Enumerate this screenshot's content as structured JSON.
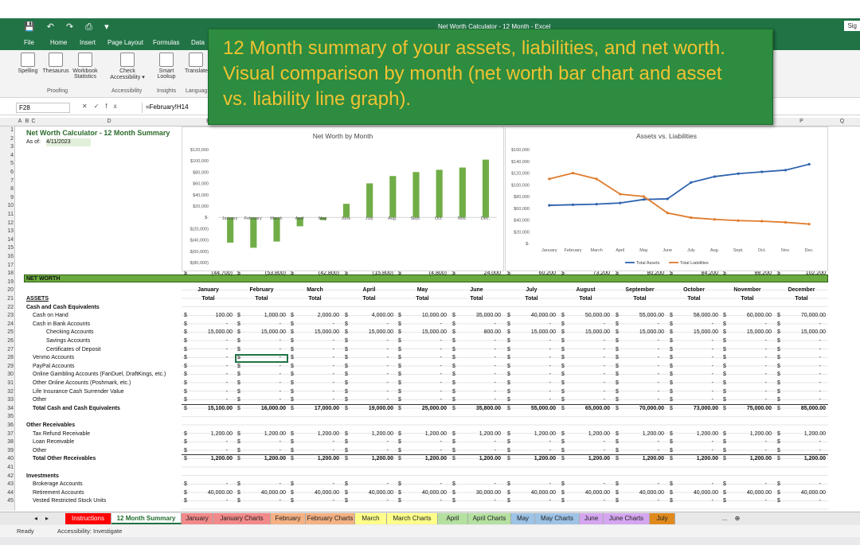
{
  "titlebar": {
    "quick_access": "💾 ↶ ↷ ⎙ ▾",
    "title": "Net Worth Calculator - 12 Month  -  Excel",
    "sign_in": "Sig"
  },
  "menu": [
    "File",
    "Home",
    "Insert",
    "Page Layout",
    "Formulas",
    "Data"
  ],
  "ribbon": {
    "buttons": [
      "Spelling",
      "Thesaurus",
      "Workbook Statistics",
      "Check Accessibility ▾",
      "Smart Lookup",
      "Translate"
    ],
    "groups": [
      "Proofing",
      "Accessibility",
      "Insights",
      "Languag"
    ]
  },
  "formula_bar": {
    "name_box": "F28",
    "formula": "=February!H14"
  },
  "banner": {
    "line1": "12 Month summary of your assets, liabilities, and net worth.",
    "line2": "Visual comparison by month (net worth bar chart and asset",
    "line3": "vs. liability line graph)."
  },
  "columns": [
    "A",
    "B",
    "C",
    "D",
    "E",
    "F",
    "G",
    "H",
    "I",
    "J",
    "K",
    "L",
    "M",
    "N",
    "O",
    "P",
    "Q"
  ],
  "rows": [
    "1",
    "2",
    "3",
    "4",
    "5",
    "6",
    "7",
    "8",
    "9",
    "10",
    "11",
    "12",
    "13",
    "14",
    "15",
    "16",
    "17",
    "18",
    "19",
    "20",
    "21",
    "22",
    "23",
    "24",
    "25",
    "26",
    "27",
    "28",
    "29",
    "30",
    "31",
    "32",
    "33",
    "34",
    "35",
    "36",
    "37",
    "38",
    "39",
    "40",
    "41",
    "42",
    "43",
    "44",
    "45"
  ],
  "sheet": {
    "title": "Net Worth Calculator - 12 Month Summary",
    "as_of_label": "As of:",
    "as_of_date": "4/11/2023",
    "net_worth_label": "NET WORTH",
    "net_worth_values": [
      "(44,700)",
      "(53,800)",
      "(42,800)",
      "(15,800)",
      "(4,800)",
      "24,000",
      "60,200",
      "73,200",
      "80,200",
      "84,200",
      "88,200",
      "102,200"
    ],
    "months": [
      "January",
      "February",
      "March",
      "April",
      "May",
      "June",
      "July",
      "August",
      "September",
      "October",
      "November",
      "December"
    ],
    "total_label": "Total",
    "currency": "$",
    "dash": "-",
    "labels": {
      "r21": "ASSETS",
      "r22": "Cash and Cash Equivalents",
      "r23": "Cash on Hand",
      "r24": "Cash in Bank Accounts",
      "r25": "Checking Accounts",
      "r26": "Savings Accounts",
      "r27": "Certificates of Deposit",
      "r28": "Venmo Accounts",
      "r29": "PayPal Accounts",
      "r30": "Online Gambling Accounts (FanDuel, DraftKings, etc.)",
      "r31": "Other Online Accounts (Poshmark, etc.)",
      "r32": "Life Insurance Cash Surrender Value",
      "r33": "Other",
      "r34": "Total Cash and Cash Equivalents",
      "r36": "Other Receivables",
      "r37": "Tax Refund Receivable",
      "r38": "Loan Receivable",
      "r39": "Other",
      "r40": "Total Other Receivables",
      "r42": "Investments",
      "r43": "Brokerage Accounts",
      "r44": "Retirement Accounts",
      "r45": "Vested Restricted Stock Units"
    },
    "r23": [
      "100.00",
      "1,000.00",
      "2,000.00",
      "4,000.00",
      "10,000.00",
      "35,000.00",
      "40,000.00",
      "50,000.00",
      "55,000.00",
      "58,000.00",
      "60,000.00",
      "70,000.00"
    ],
    "r25": [
      "15,000.00",
      "15,000.00",
      "15,000.00",
      "15,000.00",
      "15,000.00",
      "800.00",
      "15,000.00",
      "15,000.00",
      "15,000.00",
      "15,000.00",
      "15,000.00",
      "15,000.00"
    ],
    "r34": [
      "15,100.00",
      "16,000.00",
      "17,000.00",
      "19,000.00",
      "25,000.00",
      "35,800.00",
      "55,000.00",
      "65,000.00",
      "70,000.00",
      "73,000.00",
      "75,000.00",
      "85,000.00"
    ],
    "r37": [
      "1,200.00",
      "1,200.00",
      "1,200.00",
      "1,200.00",
      "1,200.00",
      "1,200.00",
      "1,200.00",
      "1,200.00",
      "1,200.00",
      "1,200.00",
      "1,200.00",
      "1,200.00"
    ],
    "r40": [
      "1,200.00",
      "1,200.00",
      "1,200.00",
      "1,200.00",
      "1,200.00",
      "1,200.00",
      "1,200.00",
      "1,200.00",
      "1,200.00",
      "1,200.00",
      "1,200.00",
      "1,200.00"
    ],
    "r44": [
      "40,000.00",
      "40,000.00",
      "40,000.00",
      "40,000.00",
      "40,000.00",
      "30,000.00",
      "40,000.00",
      "40,000.00",
      "40,000.00",
      "40,000.00",
      "40,000.00",
      "40,000.00"
    ]
  },
  "chart_data": [
    {
      "type": "bar",
      "title": "Net Worth by Month",
      "categories": [
        "January",
        "February",
        "March",
        "April",
        "May",
        "June",
        "July",
        "Aug.",
        "Sept.",
        "Oct.",
        "Nov.",
        "Dec."
      ],
      "values": [
        -44700,
        -53800,
        -42800,
        -15800,
        -4800,
        24000,
        60200,
        73200,
        80200,
        84200,
        88200,
        102200
      ],
      "ylim": [
        -80000,
        120000
      ],
      "yticks": [
        "$120,000",
        "$100,000",
        "$80,000",
        "$60,000",
        "$40,000",
        "$20,000",
        "$-",
        "$(20,000)",
        "$(40,000)",
        "$(60,000)",
        "$(80,000)"
      ],
      "color": "#70ad47"
    },
    {
      "type": "line",
      "title": "Assets vs. Liabilities",
      "categories": [
        "January",
        "February",
        "March",
        "April",
        "May",
        "June",
        "July",
        "Aug.",
        "Sept.",
        "Oct.",
        "Nov.",
        "Dec."
      ],
      "series": [
        {
          "name": "Total Assets",
          "values": [
            65000,
            66000,
            67000,
            69000,
            75000,
            76000,
            104000,
            114000,
            119000,
            122000,
            125000,
            135000
          ],
          "color": "#2e62ae"
        },
        {
          "name": "Total Liabilities",
          "values": [
            110000,
            120000,
            110000,
            84000,
            80000,
            52000,
            44000,
            41000,
            39000,
            38000,
            36000,
            33000
          ],
          "color": "#e07b2c"
        }
      ],
      "ylim": [
        0,
        160000
      ],
      "yticks": [
        "$160,000",
        "$140,000",
        "$120,000",
        "$100,000",
        "$80,000",
        "$60,000",
        "$40,000",
        "$20,000",
        "$-"
      ],
      "legend": "bottom"
    }
  ],
  "tabs": [
    {
      "label": "Instructions",
      "color": "#ff0000",
      "text": "#ffffff"
    },
    {
      "label": "12 Month Summary",
      "color": "#ffffff",
      "text": "#1f6b2b"
    },
    {
      "label": "January",
      "color": "#f28a8a",
      "text": "#222"
    },
    {
      "label": "January Charts",
      "color": "#f28a8a",
      "text": "#222"
    },
    {
      "label": "February",
      "color": "#f4b183",
      "text": "#222"
    },
    {
      "label": "February Charts",
      "color": "#f4b183",
      "text": "#222"
    },
    {
      "label": "March",
      "color": "#ffff8a",
      "text": "#222"
    },
    {
      "label": "March Charts",
      "color": "#ffff8a",
      "text": "#222"
    },
    {
      "label": "April",
      "color": "#b4e0a0",
      "text": "#222"
    },
    {
      "label": "April Charts",
      "color": "#b4e0a0",
      "text": "#222"
    },
    {
      "label": "May",
      "color": "#9dc3e6",
      "text": "#222"
    },
    {
      "label": "May Charts",
      "color": "#9dc3e6",
      "text": "#222"
    },
    {
      "label": "June",
      "color": "#d5a6f0",
      "text": "#222"
    },
    {
      "label": "June Charts",
      "color": "#d5a6f0",
      "text": "#222"
    },
    {
      "label": "July",
      "color": "#e08a1e",
      "text": "#222"
    }
  ],
  "status": {
    "ready": "Ready",
    "accessibility": "Accessibility: Investigate",
    "more": "..."
  }
}
